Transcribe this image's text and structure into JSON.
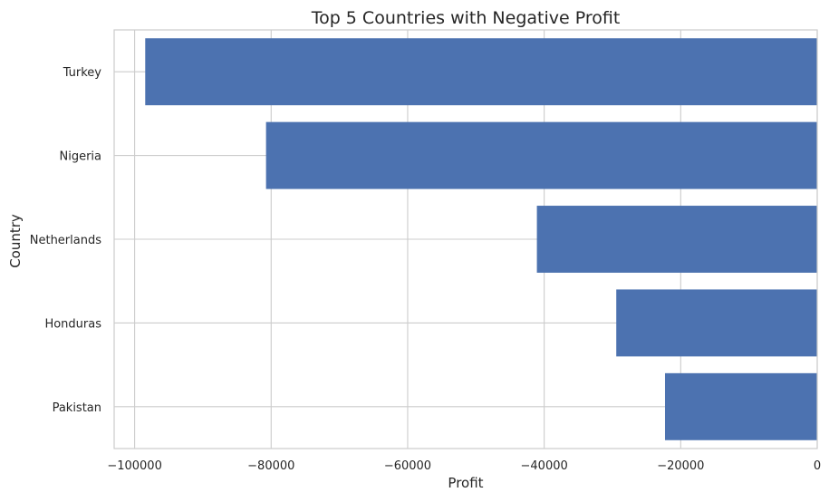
{
  "chart_data": {
    "type": "bar",
    "orientation": "horizontal",
    "title": "Top 5 Countries with Negative Profit",
    "xlabel": "Profit",
    "ylabel": "Country",
    "categories": [
      "Turkey",
      "Nigeria",
      "Netherlands",
      "Honduras",
      "Pakistan"
    ],
    "values": [
      -98450,
      -80750,
      -41070,
      -29440,
      -22300
    ],
    "xlim": [
      -103000,
      0
    ],
    "xticks": [
      -100000,
      -80000,
      -60000,
      -40000,
      -20000,
      0
    ],
    "xtick_labels": [
      "−100000",
      "−80000",
      "−60000",
      "−40000",
      "−20000",
      "0"
    ],
    "grid": true,
    "bar_color": "#4c72b0",
    "grid_color": "#cccccc"
  }
}
